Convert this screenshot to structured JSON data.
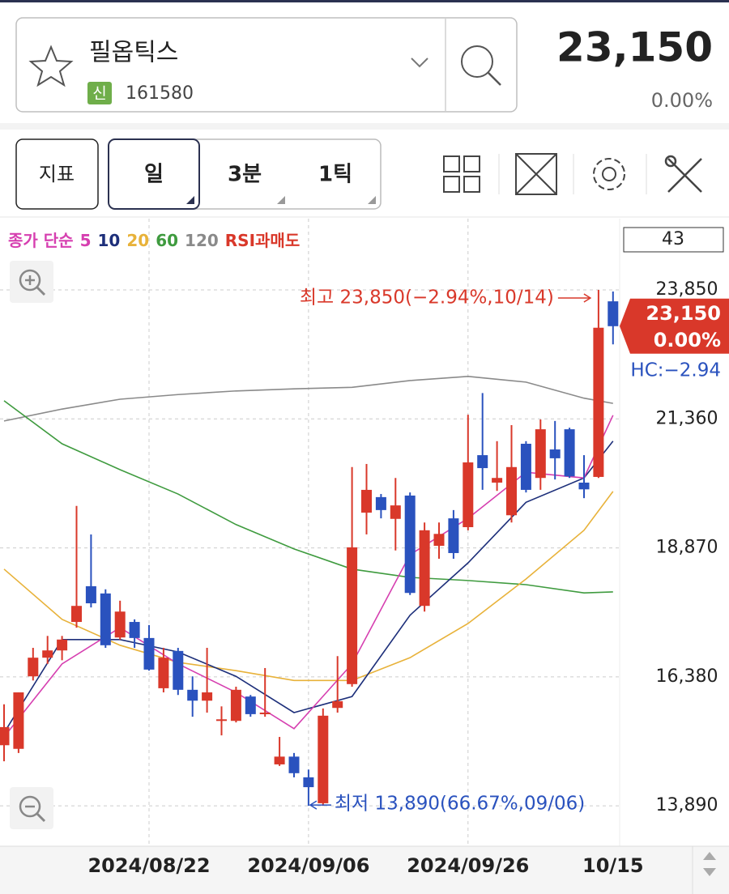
{
  "header": {
    "name": "필옵틱스",
    "badge": "신",
    "code": "161580",
    "price": "23,150",
    "change": "0.00%"
  },
  "toolbar": {
    "indicator": "지표",
    "periods": [
      "일",
      "3분",
      "1틱"
    ]
  },
  "chart_data": {
    "type": "candlestick",
    "legend_prefix": "종가 단순",
    "legend_suffix": "RSI과매도",
    "counter": "43",
    "up_color": "#d9382a",
    "down_color": "#2a52be",
    "ylim": [
      13110,
      25070
    ],
    "yticks": [
      {
        "value": 23850,
        "label": "23,850"
      },
      {
        "value": 21360,
        "label": "21,360"
      },
      {
        "value": 18870,
        "label": "18,870"
      },
      {
        "value": 16380,
        "label": "16,380"
      },
      {
        "value": 13890,
        "label": "13,890"
      }
    ],
    "grid": true,
    "categories": [
      null,
      null,
      null,
      null,
      null,
      null,
      null,
      null,
      null,
      null,
      "2024/08/22",
      null,
      null,
      null,
      null,
      null,
      null,
      null,
      null,
      null,
      null,
      "2024/09/06",
      null,
      null,
      null,
      null,
      null,
      null,
      null,
      null,
      null,
      null,
      "2024/09/26",
      null,
      null,
      null,
      null,
      null,
      null,
      null,
      null,
      null,
      "10/15"
    ],
    "open": [
      15060,
      14990,
      16390,
      16750,
      16890,
      17440,
      18130,
      17990,
      17140,
      17440,
      17130,
      16160,
      16880,
      16130,
      15920,
      15530,
      15530,
      16000,
      15660,
      14690,
      14840,
      14440,
      13940,
      15780,
      16240,
      19550,
      19850,
      19430,
      19880,
      17750,
      18910,
      19440,
      19270,
      20660,
      20130,
      19500,
      20880,
      20220,
      20770,
      21160,
      20130,
      20240,
      23630
    ],
    "high": [
      15850,
      16080,
      16940,
      17170,
      17170,
      19680,
      19130,
      18070,
      17850,
      17490,
      17380,
      16940,
      16940,
      16390,
      16940,
      15810,
      16190,
      16030,
      16550,
      15220,
      14910,
      14590,
      15770,
      16780,
      20430,
      20490,
      19910,
      20220,
      19940,
      19360,
      19360,
      19600,
      21440,
      21860,
      20930,
      21240,
      20930,
      21350,
      21320,
      21190,
      20660,
      23850,
      23820
    ],
    "low": [
      14750,
      14910,
      16310,
      16630,
      16700,
      17330,
      17720,
      16940,
      17100,
      16940,
      16500,
      16080,
      16030,
      15610,
      15690,
      15250,
      15500,
      15610,
      15610,
      14660,
      14440,
      13890,
      13890,
      15690,
      16190,
      19130,
      19440,
      18820,
      17960,
      17640,
      18660,
      18660,
      19210,
      19990,
      19970,
      19360,
      19940,
      19990,
      20190,
      20220,
      19830,
      20220,
      22800
    ],
    "close": [
      15410,
      16080,
      16750,
      16890,
      17100,
      17750,
      17800,
      16990,
      17640,
      17130,
      16520,
      16750,
      16130,
      15920,
      16080,
      15560,
      16130,
      15660,
      15690,
      14840,
      14520,
      14250,
      15630,
      15910,
      18880,
      19990,
      19600,
      19690,
      18000,
      19210,
      19140,
      18770,
      20520,
      20410,
      20220,
      20430,
      19990,
      21160,
      20600,
      20250,
      20000,
      23120,
      23150
    ],
    "series": [
      {
        "name": "5",
        "color": "#d63fb0",
        "x": [
          0,
          4,
          8,
          12,
          16,
          20,
          24,
          28,
          32,
          36,
          40,
          42
        ],
        "values": [
          15220,
          16630,
          17330,
          16630,
          16080,
          15380,
          16630,
          18740,
          19440,
          20330,
          20220,
          21430
        ]
      },
      {
        "name": "10",
        "color": "#1d2f7a",
        "x": [
          0,
          4,
          8,
          12,
          16,
          20,
          24,
          28,
          32,
          36,
          40,
          42
        ],
        "values": [
          15300,
          17100,
          17100,
          16860,
          16390,
          15690,
          16000,
          17570,
          18580,
          19750,
          20220,
          20930
        ]
      },
      {
        "name": "20",
        "color": "#e8b23a",
        "x": [
          0,
          4,
          8,
          12,
          16,
          20,
          24,
          28,
          32,
          36,
          40,
          42
        ],
        "values": [
          18460,
          17490,
          16990,
          16660,
          16500,
          16310,
          16310,
          16750,
          17410,
          18270,
          19210,
          19960
        ]
      },
      {
        "name": "60",
        "color": "#3f9b3f",
        "x": [
          0,
          4,
          8,
          12,
          16,
          20,
          24,
          28,
          32,
          36,
          40,
          42
        ],
        "values": [
          21710,
          20880,
          20380,
          19910,
          19320,
          18850,
          18460,
          18300,
          18240,
          18160,
          18000,
          18020
        ]
      },
      {
        "name": "120",
        "color": "#8a8a8a",
        "x": [
          0,
          4,
          8,
          12,
          16,
          20,
          24,
          28,
          32,
          36,
          40,
          42
        ],
        "values": [
          21320,
          21550,
          21740,
          21830,
          21900,
          21940,
          21970,
          22100,
          22180,
          22070,
          21760,
          21660
        ]
      }
    ],
    "high_note": "최고 23,850(−2.94%,10/14)",
    "low_note": "최저 13,890(66.67%,09/06)",
    "price_tag": {
      "price": "23,150",
      "change": "0.00%"
    },
    "hc_label": "HC:−2.94"
  }
}
